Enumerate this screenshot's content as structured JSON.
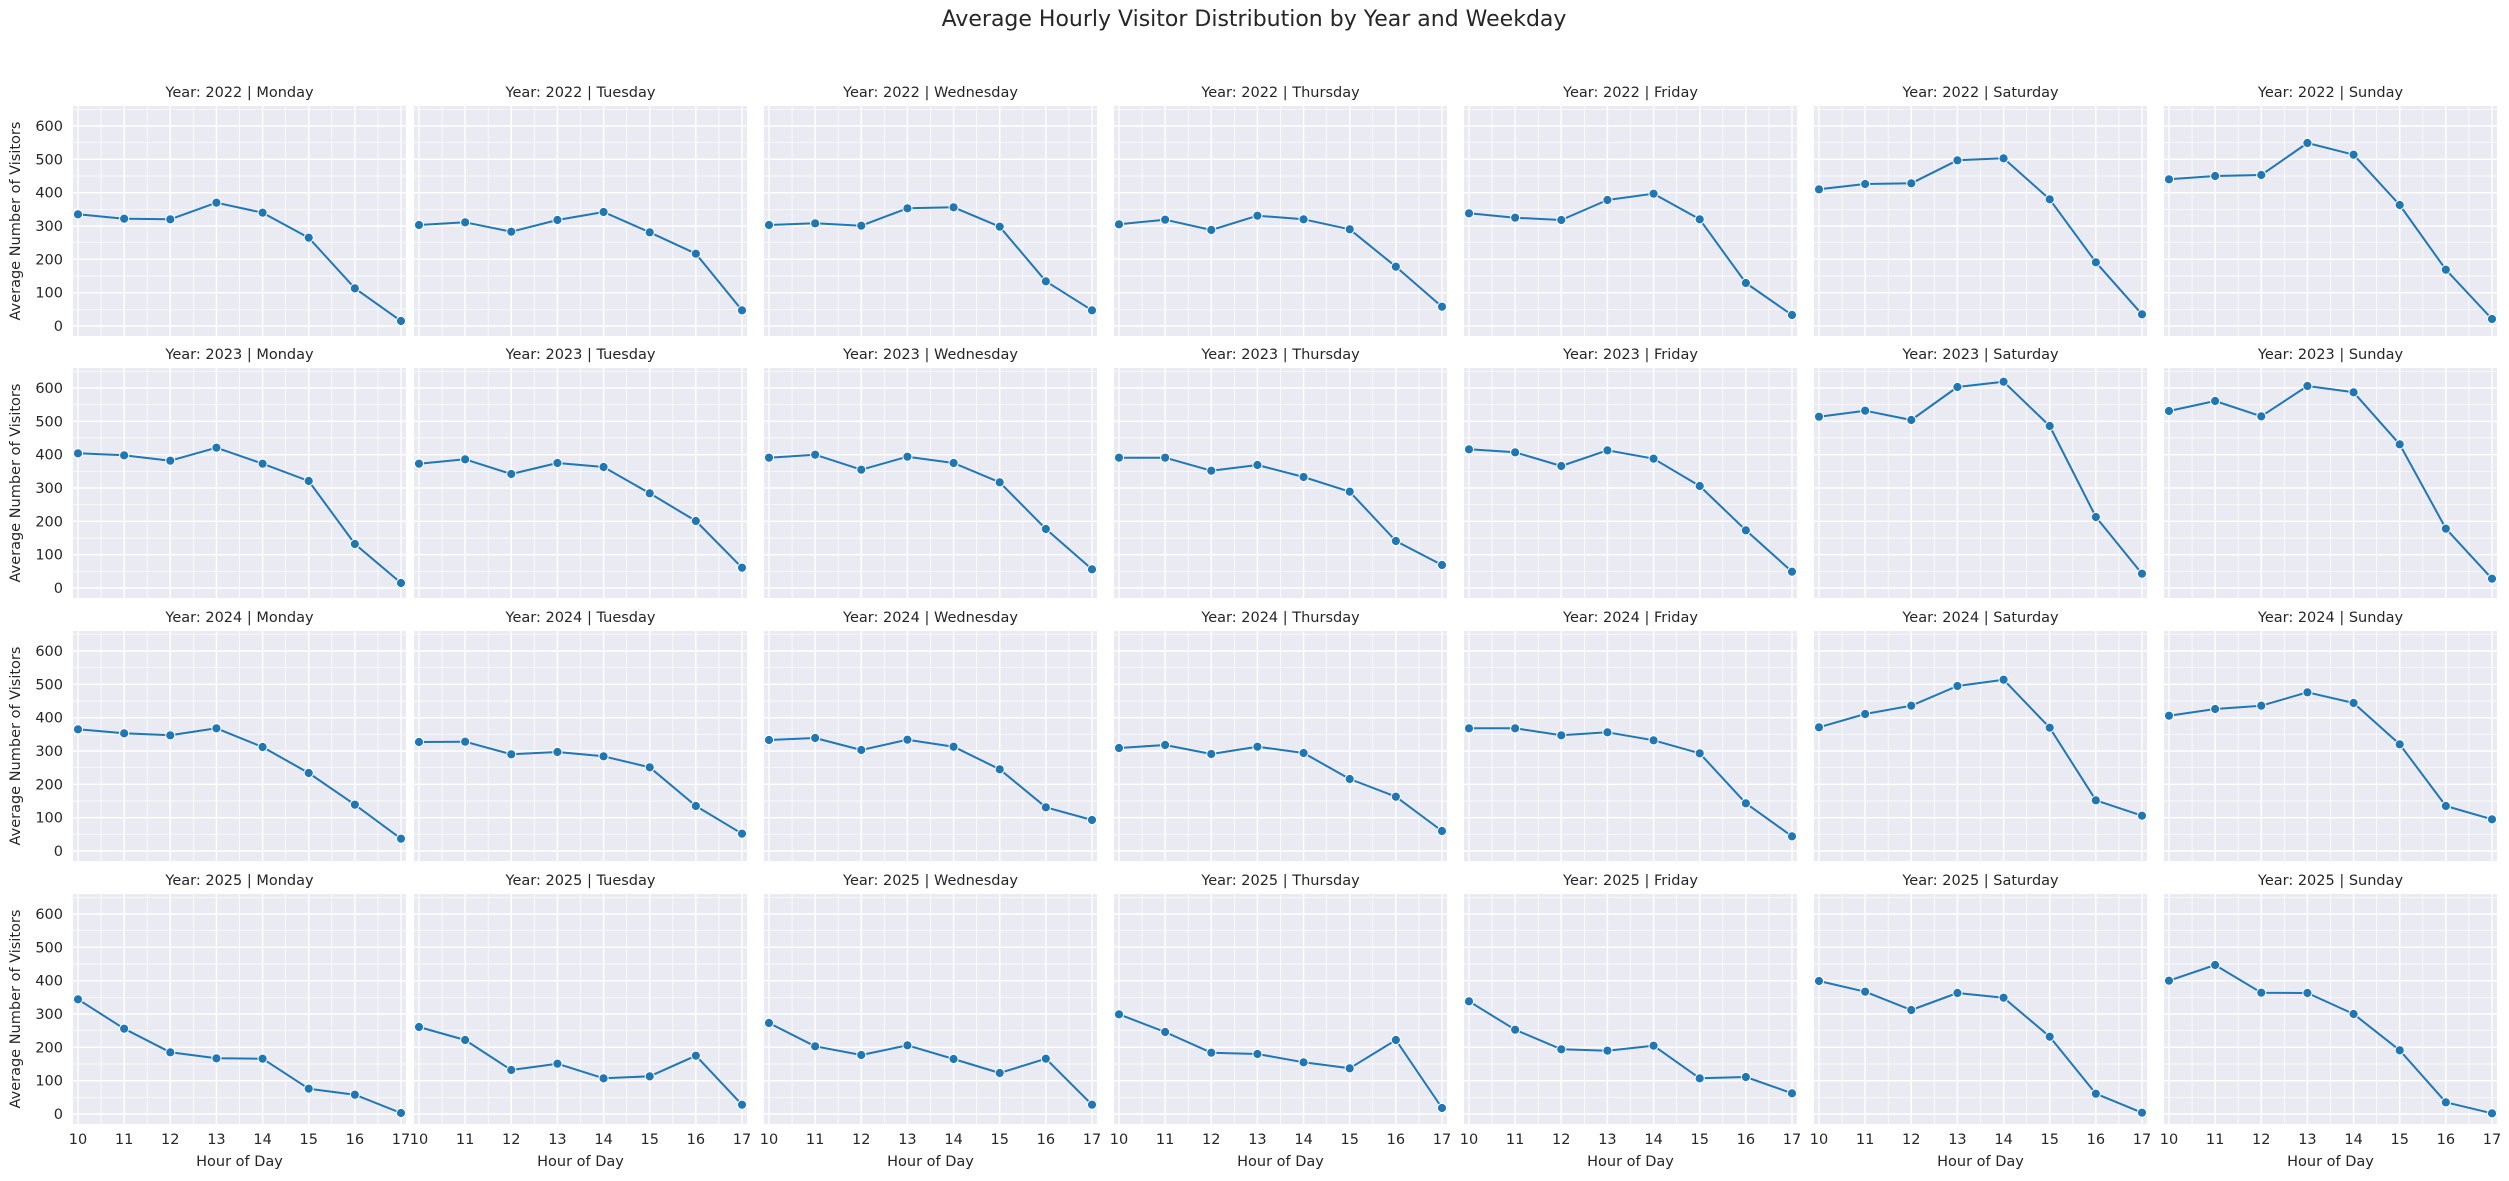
{
  "chart_data": {
    "type": "line",
    "title": "Average Hourly Visitor Distribution by Year and Weekday",
    "xlabel": "Hour of Day",
    "ylabel": "Average Number of Visitors",
    "x": [
      10,
      11,
      12,
      13,
      14,
      15,
      16,
      17
    ],
    "xticks": [
      "10",
      "11",
      "12",
      "13",
      "14",
      "15",
      "16",
      "17"
    ],
    "yticks": [
      "0",
      "100",
      "200",
      "300",
      "400",
      "500",
      "600"
    ],
    "ylim": [
      -30,
      660
    ],
    "grid": true,
    "facet_title_format": "Year: {year} | {day}",
    "years": [
      "2022",
      "2023",
      "2024",
      "2025"
    ],
    "days": [
      "Monday",
      "Tuesday",
      "Wednesday",
      "Thursday",
      "Friday",
      "Saturday",
      "Sunday"
    ],
    "colors": {
      "line": "#1f77b4",
      "panel_bg": "#eaeaf2",
      "grid": "#ffffff",
      "text": "#262626"
    },
    "panels": [
      {
        "year": "2022",
        "day": "Monday",
        "title": "Year: 2022 | Monday",
        "values": [
          335,
          322,
          320,
          370,
          340,
          265,
          113,
          15
        ]
      },
      {
        "year": "2022",
        "day": "Tuesday",
        "title": "Year: 2022 | Tuesday",
        "values": [
          303,
          311,
          283,
          318,
          342,
          281,
          217,
          47
        ]
      },
      {
        "year": "2022",
        "day": "Wednesday",
        "title": "Year: 2022 | Wednesday",
        "values": [
          303,
          308,
          301,
          353,
          356,
          298,
          134,
          47
        ]
      },
      {
        "year": "2022",
        "day": "Thursday",
        "title": "Year: 2022 | Thursday",
        "values": [
          305,
          319,
          288,
          331,
          320,
          290,
          178,
          58
        ]
      },
      {
        "year": "2022",
        "day": "Friday",
        "title": "Year: 2022 | Friday",
        "values": [
          338,
          325,
          318,
          378,
          397,
          320,
          129,
          33
        ]
      },
      {
        "year": "2022",
        "day": "Saturday",
        "title": "Year: 2022 | Saturday",
        "values": [
          410,
          426,
          428,
          497,
          503,
          380,
          191,
          35
        ]
      },
      {
        "year": "2022",
        "day": "Sunday",
        "title": "Year: 2022 | Sunday",
        "values": [
          440,
          450,
          453,
          549,
          514,
          363,
          169,
          21
        ]
      },
      {
        "year": "2023",
        "day": "Monday",
        "title": "Year: 2023 | Monday",
        "values": [
          404,
          398,
          382,
          421,
          373,
          321,
          132,
          15
        ]
      },
      {
        "year": "2023",
        "day": "Tuesday",
        "title": "Year: 2023 | Tuesday",
        "values": [
          373,
          386,
          342,
          375,
          363,
          284,
          201,
          61
        ]
      },
      {
        "year": "2023",
        "day": "Wednesday",
        "title": "Year: 2023 | Wednesday",
        "values": [
          391,
          400,
          355,
          394,
          375,
          317,
          177,
          56
        ]
      },
      {
        "year": "2023",
        "day": "Thursday",
        "title": "Year: 2023 | Thursday",
        "values": [
          391,
          391,
          352,
          369,
          333,
          289,
          141,
          69
        ]
      },
      {
        "year": "2023",
        "day": "Friday",
        "title": "Year: 2023 | Friday",
        "values": [
          416,
          407,
          366,
          413,
          388,
          306,
          173,
          49
        ]
      },
      {
        "year": "2023",
        "day": "Saturday",
        "title": "Year: 2023 | Saturday",
        "values": [
          514,
          532,
          504,
          603,
          619,
          486,
          213,
          43
        ]
      },
      {
        "year": "2023",
        "day": "Sunday",
        "title": "Year: 2023 | Sunday",
        "values": [
          531,
          561,
          515,
          606,
          587,
          431,
          178,
          28
        ]
      },
      {
        "year": "2024",
        "day": "Monday",
        "title": "Year: 2024 | Monday",
        "values": [
          365,
          353,
          347,
          368,
          312,
          234,
          139,
          37
        ]
      },
      {
        "year": "2024",
        "day": "Tuesday",
        "title": "Year: 2024 | Tuesday",
        "values": [
          327,
          328,
          290,
          297,
          284,
          251,
          135,
          52
        ]
      },
      {
        "year": "2024",
        "day": "Wednesday",
        "title": "Year: 2024 | Wednesday",
        "values": [
          333,
          339,
          303,
          334,
          313,
          245,
          131,
          93
        ]
      },
      {
        "year": "2024",
        "day": "Thursday",
        "title": "Year: 2024 | Thursday",
        "values": [
          309,
          318,
          291,
          313,
          294,
          216,
          163,
          60
        ]
      },
      {
        "year": "2024",
        "day": "Friday",
        "title": "Year: 2024 | Friday",
        "values": [
          368,
          368,
          347,
          356,
          332,
          293,
          143,
          44
        ]
      },
      {
        "year": "2024",
        "day": "Saturday",
        "title": "Year: 2024 | Saturday",
        "values": [
          371,
          411,
          436,
          495,
          514,
          370,
          152,
          106
        ]
      },
      {
        "year": "2024",
        "day": "Sunday",
        "title": "Year: 2024 | Sunday",
        "values": [
          406,
          426,
          436,
          476,
          444,
          320,
          135,
          95
        ]
      },
      {
        "year": "2025",
        "day": "Monday",
        "title": "Year: 2025 | Monday",
        "values": [
          344,
          256,
          185,
          167,
          166,
          76,
          58,
          3
        ]
      },
      {
        "year": "2025",
        "day": "Tuesday",
        "title": "Year: 2025 | Tuesday",
        "values": [
          261,
          222,
          132,
          151,
          107,
          113,
          175,
          28
        ]
      },
      {
        "year": "2025",
        "day": "Wednesday",
        "title": "Year: 2025 | Wednesday",
        "values": [
          273,
          203,
          177,
          206,
          165,
          123,
          166,
          28
        ]
      },
      {
        "year": "2025",
        "day": "Thursday",
        "title": "Year: 2025 | Thursday",
        "values": [
          299,
          246,
          184,
          180,
          155,
          137,
          222,
          18
        ]
      },
      {
        "year": "2025",
        "day": "Friday",
        "title": "Year: 2025 | Friday",
        "values": [
          338,
          253,
          194,
          190,
          205,
          107,
          111,
          62
        ]
      },
      {
        "year": "2025",
        "day": "Saturday",
        "title": "Year: 2025 | Saturday",
        "values": [
          399,
          367,
          312,
          363,
          349,
          232,
          61,
          4
        ]
      },
      {
        "year": "2025",
        "day": "Sunday",
        "title": "Year: 2025 | Sunday",
        "values": [
          400,
          447,
          364,
          363,
          300,
          191,
          35,
          2
        ]
      }
    ]
  }
}
